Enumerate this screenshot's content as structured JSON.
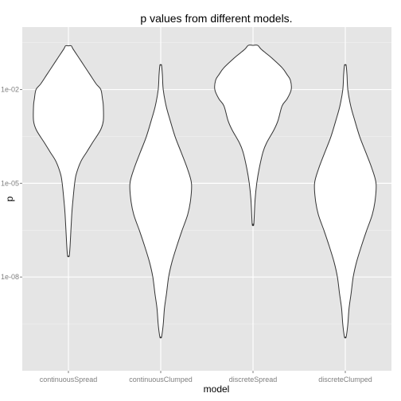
{
  "chart_data": {
    "type": "violin",
    "title": "p values from different models.",
    "xlabel": "model",
    "ylabel": "p",
    "y_scale": "log10",
    "ylim": [
      1e-11,
      1
    ],
    "y_ticks": [
      {
        "value": 0.01,
        "label": "1e-02"
      },
      {
        "value": 1e-05,
        "label": "1e-05"
      },
      {
        "value": 1e-08,
        "label": "1e-08"
      }
    ],
    "categories": [
      "continuousSpread",
      "continuousClumped",
      "discreteSpread",
      "discreteClumped"
    ],
    "violins": [
      {
        "category": "continuousSpread",
        "min": 4.7e-08,
        "max": 0.25,
        "outline": [
          [
            0.25,
            0.07
          ],
          [
            0.2,
            0.11
          ],
          [
            0.1,
            0.26
          ],
          [
            0.05,
            0.41
          ],
          [
            0.03,
            0.52
          ],
          [
            0.015,
            0.67
          ],
          [
            0.01,
            0.78
          ],
          [
            0.005,
            0.82
          ],
          [
            0.003,
            0.84
          ],
          [
            0.001,
            0.84
          ],
          [
            0.0005,
            0.77
          ],
          [
            0.0002,
            0.58
          ],
          [
            0.0001,
            0.44
          ],
          [
            5e-05,
            0.3
          ],
          [
            2e-05,
            0.19
          ],
          [
            1e-05,
            0.15
          ],
          [
            3e-06,
            0.11
          ],
          [
            1e-06,
            0.08
          ],
          [
            1e-07,
            0.04
          ],
          [
            4.7e-08,
            0.02
          ]
        ]
      },
      {
        "category": "continuousClumped",
        "min": 1.2e-10,
        "max": 0.06,
        "outline": [
          [
            0.06,
            0.02
          ],
          [
            0.03,
            0.04
          ],
          [
            0.01,
            0.06
          ],
          [
            0.003,
            0.13
          ],
          [
            0.001,
            0.23
          ],
          [
            0.0003,
            0.35
          ],
          [
            0.0001,
            0.49
          ],
          [
            3e-05,
            0.64
          ],
          [
            1e-05,
            0.74
          ],
          [
            3e-06,
            0.72
          ],
          [
            1e-06,
            0.65
          ],
          [
            3e-07,
            0.51
          ],
          [
            1e-07,
            0.39
          ],
          [
            3e-08,
            0.27
          ],
          [
            1e-08,
            0.19
          ],
          [
            3e-09,
            0.14
          ],
          [
            1e-09,
            0.09
          ],
          [
            3e-10,
            0.06
          ],
          [
            1.2e-10,
            0.02
          ]
        ]
      },
      {
        "category": "discreteSpread",
        "min": 5e-07,
        "max": 0.26,
        "outline": [
          [
            0.26,
            0.11
          ],
          [
            0.2,
            0.19
          ],
          [
            0.15,
            0.3
          ],
          [
            0.1,
            0.46
          ],
          [
            0.05,
            0.7
          ],
          [
            0.03,
            0.82
          ],
          [
            0.02,
            0.9
          ],
          [
            0.01,
            0.92
          ],
          [
            0.005,
            0.82
          ],
          [
            0.003,
            0.7
          ],
          [
            0.001,
            0.6
          ],
          [
            0.0005,
            0.5
          ],
          [
            0.0002,
            0.33
          ],
          [
            0.0001,
            0.24
          ],
          [
            3e-05,
            0.15
          ],
          [
            1e-05,
            0.09
          ],
          [
            3e-06,
            0.05
          ],
          [
            5e-07,
            0.02
          ]
        ]
      },
      {
        "category": "discreteClumped",
        "min": 1.2e-10,
        "max": 0.06,
        "outline": [
          [
            0.06,
            0.02
          ],
          [
            0.03,
            0.04
          ],
          [
            0.01,
            0.06
          ],
          [
            0.003,
            0.13
          ],
          [
            0.001,
            0.23
          ],
          [
            0.0003,
            0.35
          ],
          [
            0.0001,
            0.49
          ],
          [
            3e-05,
            0.64
          ],
          [
            1e-05,
            0.74
          ],
          [
            3e-06,
            0.72
          ],
          [
            1e-06,
            0.65
          ],
          [
            3e-07,
            0.51
          ],
          [
            1e-07,
            0.39
          ],
          [
            3e-08,
            0.27
          ],
          [
            1e-08,
            0.19
          ],
          [
            3e-09,
            0.14
          ],
          [
            1e-09,
            0.09
          ],
          [
            3e-10,
            0.06
          ],
          [
            1.2e-10,
            0.02
          ]
        ]
      }
    ],
    "grid": true,
    "legend": "none",
    "colors": {
      "panel_background": "#e5e5e5",
      "grid_major": "#ffffff",
      "grid_minor": "#f2f2f2",
      "violin_fill": "#ffffff",
      "violin_stroke": "#333333"
    }
  }
}
